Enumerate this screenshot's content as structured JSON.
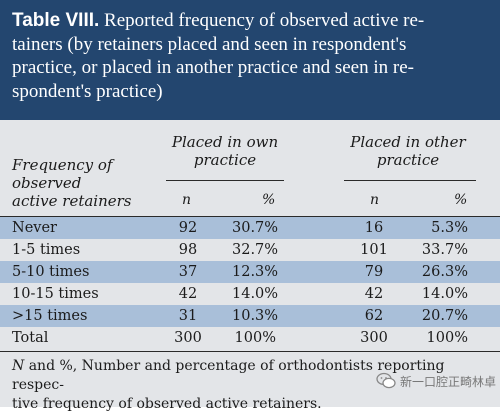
{
  "caption": {
    "label": "Table VIII.",
    "line1": "Reported frequency of observed active re-",
    "line2": "tainers (by retainers placed and seen in respondent's",
    "line3": "practice, or placed in another practice and seen in re-",
    "line4": "spondent's practice)"
  },
  "table": {
    "row_header": [
      "Frequency of",
      "observed",
      "active retainers"
    ],
    "group1": [
      "Placed in own",
      "practice"
    ],
    "group2": [
      "Placed in other",
      "practice"
    ],
    "sub": {
      "n1": "n",
      "p1": "%",
      "n2": "n",
      "p2": "%"
    },
    "rows": [
      {
        "label": "Never",
        "n1": "92",
        "p1": "30.7%",
        "n2": "16",
        "p2": "5.3%"
      },
      {
        "label": "1-5 times",
        "n1": "98",
        "p1": "32.7%",
        "n2": "101",
        "p2": "33.7%"
      },
      {
        "label": "5-10 times",
        "n1": "37",
        "p1": "12.3%",
        "n2": "79",
        "p2": "26.3%"
      },
      {
        "label": "10-15 times",
        "n1": "42",
        "p1": "14.0%",
        "n2": "42",
        "p2": "14.0%"
      },
      {
        "label": ">15 times",
        "n1": "31",
        "p1": "10.3%",
        "n2": "62",
        "p2": "20.7%"
      },
      {
        "label": "Total",
        "n1": "300",
        "p1": "100%",
        "n2": "300",
        "p2": "100%"
      }
    ]
  },
  "note": {
    "n_letter": "N",
    "line1_rest": " and %, Number and percentage of orthodontists reporting respec-",
    "line2": "tive frequency of observed active retainers."
  },
  "watermark": {
    "text": "新一口腔正畸林卓",
    "icon": "wechat-icon"
  },
  "colors": {
    "header_bg": "#23466f",
    "shade": "#a9bfd9",
    "body_bg": "#e3e5e8"
  }
}
